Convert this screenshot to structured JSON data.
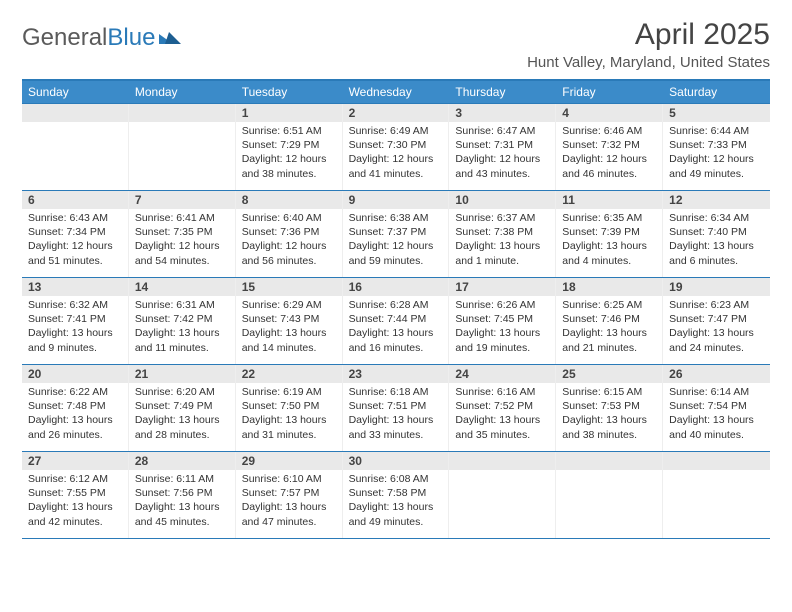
{
  "logo": {
    "text_a": "General",
    "text_b": "Blue"
  },
  "title": "April 2025",
  "location": "Hunt Valley, Maryland, United States",
  "colors": {
    "header_bg": "#3b8bc9",
    "rule": "#2a7ab8",
    "daynum_bg": "#e9e9e9",
    "text": "#333333"
  },
  "day_names": [
    "Sunday",
    "Monday",
    "Tuesday",
    "Wednesday",
    "Thursday",
    "Friday",
    "Saturday"
  ],
  "labels": {
    "sunrise": "Sunrise:",
    "sunset": "Sunset:",
    "daylight": "Daylight:"
  },
  "weeks": [
    [
      null,
      null,
      {
        "n": "1",
        "sr": "6:51 AM",
        "ss": "7:29 PM",
        "dl": "12 hours and 38 minutes."
      },
      {
        "n": "2",
        "sr": "6:49 AM",
        "ss": "7:30 PM",
        "dl": "12 hours and 41 minutes."
      },
      {
        "n": "3",
        "sr": "6:47 AM",
        "ss": "7:31 PM",
        "dl": "12 hours and 43 minutes."
      },
      {
        "n": "4",
        "sr": "6:46 AM",
        "ss": "7:32 PM",
        "dl": "12 hours and 46 minutes."
      },
      {
        "n": "5",
        "sr": "6:44 AM",
        "ss": "7:33 PM",
        "dl": "12 hours and 49 minutes."
      }
    ],
    [
      {
        "n": "6",
        "sr": "6:43 AM",
        "ss": "7:34 PM",
        "dl": "12 hours and 51 minutes."
      },
      {
        "n": "7",
        "sr": "6:41 AM",
        "ss": "7:35 PM",
        "dl": "12 hours and 54 minutes."
      },
      {
        "n": "8",
        "sr": "6:40 AM",
        "ss": "7:36 PM",
        "dl": "12 hours and 56 minutes."
      },
      {
        "n": "9",
        "sr": "6:38 AM",
        "ss": "7:37 PM",
        "dl": "12 hours and 59 minutes."
      },
      {
        "n": "10",
        "sr": "6:37 AM",
        "ss": "7:38 PM",
        "dl": "13 hours and 1 minute."
      },
      {
        "n": "11",
        "sr": "6:35 AM",
        "ss": "7:39 PM",
        "dl": "13 hours and 4 minutes."
      },
      {
        "n": "12",
        "sr": "6:34 AM",
        "ss": "7:40 PM",
        "dl": "13 hours and 6 minutes."
      }
    ],
    [
      {
        "n": "13",
        "sr": "6:32 AM",
        "ss": "7:41 PM",
        "dl": "13 hours and 9 minutes."
      },
      {
        "n": "14",
        "sr": "6:31 AM",
        "ss": "7:42 PM",
        "dl": "13 hours and 11 minutes."
      },
      {
        "n": "15",
        "sr": "6:29 AM",
        "ss": "7:43 PM",
        "dl": "13 hours and 14 minutes."
      },
      {
        "n": "16",
        "sr": "6:28 AM",
        "ss": "7:44 PM",
        "dl": "13 hours and 16 minutes."
      },
      {
        "n": "17",
        "sr": "6:26 AM",
        "ss": "7:45 PM",
        "dl": "13 hours and 19 minutes."
      },
      {
        "n": "18",
        "sr": "6:25 AM",
        "ss": "7:46 PM",
        "dl": "13 hours and 21 minutes."
      },
      {
        "n": "19",
        "sr": "6:23 AM",
        "ss": "7:47 PM",
        "dl": "13 hours and 24 minutes."
      }
    ],
    [
      {
        "n": "20",
        "sr": "6:22 AM",
        "ss": "7:48 PM",
        "dl": "13 hours and 26 minutes."
      },
      {
        "n": "21",
        "sr": "6:20 AM",
        "ss": "7:49 PM",
        "dl": "13 hours and 28 minutes."
      },
      {
        "n": "22",
        "sr": "6:19 AM",
        "ss": "7:50 PM",
        "dl": "13 hours and 31 minutes."
      },
      {
        "n": "23",
        "sr": "6:18 AM",
        "ss": "7:51 PM",
        "dl": "13 hours and 33 minutes."
      },
      {
        "n": "24",
        "sr": "6:16 AM",
        "ss": "7:52 PM",
        "dl": "13 hours and 35 minutes."
      },
      {
        "n": "25",
        "sr": "6:15 AM",
        "ss": "7:53 PM",
        "dl": "13 hours and 38 minutes."
      },
      {
        "n": "26",
        "sr": "6:14 AM",
        "ss": "7:54 PM",
        "dl": "13 hours and 40 minutes."
      }
    ],
    [
      {
        "n": "27",
        "sr": "6:12 AM",
        "ss": "7:55 PM",
        "dl": "13 hours and 42 minutes."
      },
      {
        "n": "28",
        "sr": "6:11 AM",
        "ss": "7:56 PM",
        "dl": "13 hours and 45 minutes."
      },
      {
        "n": "29",
        "sr": "6:10 AM",
        "ss": "7:57 PM",
        "dl": "13 hours and 47 minutes."
      },
      {
        "n": "30",
        "sr": "6:08 AM",
        "ss": "7:58 PM",
        "dl": "13 hours and 49 minutes."
      },
      null,
      null,
      null
    ]
  ]
}
